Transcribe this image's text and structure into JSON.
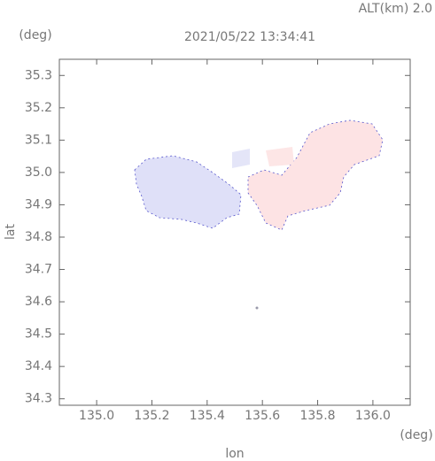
{
  "chart_data": {
    "type": "field",
    "title": "2021/05/22 13:34:41",
    "annotation": "ALT(km) 2.0",
    "y_unit": "(deg)",
    "x_unit": "(deg)",
    "ylabel": "lat",
    "xlabel": "lon",
    "xlim": [
      134.865,
      136.135
    ],
    "ylim": [
      34.28,
      35.35
    ],
    "xticks": [
      {
        "value": 135,
        "label": "135.0"
      },
      135.2,
      135.4,
      135.6,
      135.8,
      {
        "value": 136,
        "label": "136.0"
      }
    ],
    "yticks": [
      34.3,
      34.4,
      34.5,
      34.6,
      34.7,
      34.8,
      34.9,
      {
        "value": 35,
        "label": "35.0"
      },
      35.1,
      35.2,
      35.3
    ]
  }
}
